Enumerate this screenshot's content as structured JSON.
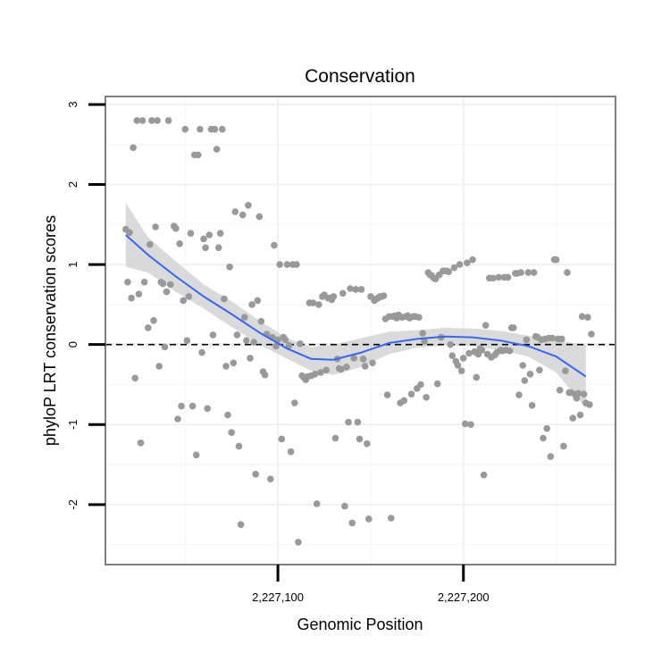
{
  "chart_data": {
    "type": "scatter",
    "title": "Conservation",
    "xlabel": "Genomic Position",
    "ylabel": "phyloP LRT conservation scores",
    "xlim": [
      2227007,
      2227282
    ],
    "ylim": [
      -2.75,
      3.1
    ],
    "x_major_ticks": [
      2227100,
      2227200
    ],
    "x_tick_labels": [
      "2,227,100",
      "2,227,200"
    ],
    "x_minor_gridlines": [
      2227050,
      2227150,
      2227250
    ],
    "y_major_ticks": [
      -2,
      -1,
      0,
      1,
      2,
      3
    ],
    "y_tick_labels": [
      "-2",
      "-1",
      "0",
      "1",
      "2",
      "3"
    ],
    "y_minor_gridlines": [
      -2.5,
      -1.5,
      -0.5,
      0.5,
      1.5,
      2.5
    ],
    "reference_line": {
      "y": 0,
      "style": "dashed"
    },
    "smooth": {
      "method": "loess",
      "color": "#3366FF",
      "band_color": "#d3d3d3",
      "x": [
        2227018,
        2227030,
        2227045,
        2227060,
        2227075,
        2227090,
        2227105,
        2227118,
        2227130,
        2227145,
        2227160,
        2227175,
        2227190,
        2227205,
        2227220,
        2227235,
        2227250,
        2227266
      ],
      "y": [
        1.37,
        1.12,
        0.85,
        0.6,
        0.38,
        0.15,
        -0.05,
        -0.18,
        -0.19,
        -0.1,
        0.02,
        0.07,
        0.1,
        0.09,
        0.05,
        -0.02,
        -0.15,
        -0.4
      ],
      "lower": [
        0.97,
        0.9,
        0.66,
        0.45,
        0.22,
        0.0,
        -0.18,
        -0.33,
        -0.38,
        -0.28,
        -0.12,
        -0.04,
        -0.01,
        -0.02,
        -0.07,
        -0.15,
        -0.35,
        -0.8
      ],
      "upper": [
        1.77,
        1.34,
        1.04,
        0.75,
        0.54,
        0.3,
        0.08,
        -0.03,
        0.0,
        0.08,
        0.16,
        0.18,
        0.21,
        0.2,
        0.17,
        0.11,
        0.05,
        0.0
      ]
    },
    "point_color": "#999999",
    "points": [
      [
        2227018,
        1.44
      ],
      [
        2227019,
        0.78
      ],
      [
        2227020,
        1.4
      ],
      [
        2227021,
        0.58
      ],
      [
        2227022,
        2.46
      ],
      [
        2227023,
        -0.42
      ],
      [
        2227024,
        2.8
      ],
      [
        2227025,
        0.63
      ],
      [
        2227026,
        -1.23
      ],
      [
        2227027,
        2.8
      ],
      [
        2227028,
        0.78
      ],
      [
        2227030,
        0.21
      ],
      [
        2227031,
        1.25
      ],
      [
        2227032,
        2.8
      ],
      [
        2227033,
        0.3
      ],
      [
        2227034,
        1.47
      ],
      [
        2227035,
        2.8
      ],
      [
        2227036,
        -0.27
      ],
      [
        2227037,
        0.78
      ],
      [
        2227038,
        0.76
      ],
      [
        2227039,
        -0.03
      ],
      [
        2227040,
        0.66
      ],
      [
        2227041,
        2.8
      ],
      [
        2227042,
        0.75
      ],
      [
        2227044,
        1.48
      ],
      [
        2227045,
        1.45
      ],
      [
        2227046,
        -0.93
      ],
      [
        2227047,
        1.26
      ],
      [
        2227048,
        -0.77
      ],
      [
        2227049,
        0.55
      ],
      [
        2227050,
        2.69
      ],
      [
        2227051,
        0.05
      ],
      [
        2227052,
        0.6
      ],
      [
        2227053,
        1.39
      ],
      [
        2227054,
        -0.77
      ],
      [
        2227055,
        2.37
      ],
      [
        2227056,
        -1.38
      ],
      [
        2227057,
        2.37
      ],
      [
        2227058,
        2.69
      ],
      [
        2227059,
        -0.1
      ],
      [
        2227060,
        1.32
      ],
      [
        2227061,
        1.21
      ],
      [
        2227062,
        -0.8
      ],
      [
        2227063,
        1.37
      ],
      [
        2227064,
        2.69
      ],
      [
        2227065,
        0.12
      ],
      [
        2227066,
        2.69
      ],
      [
        2227067,
        2.44
      ],
      [
        2227068,
        1.21
      ],
      [
        2227069,
        1.39
      ],
      [
        2227070,
        2.69
      ],
      [
        2227071,
        0.57
      ],
      [
        2227072,
        -0.27
      ],
      [
        2227073,
        -0.88
      ],
      [
        2227074,
        0.97
      ],
      [
        2227075,
        -1.1
      ],
      [
        2227076,
        -0.23
      ],
      [
        2227077,
        1.66
      ],
      [
        2227078,
        0.12
      ],
      [
        2227079,
        -1.27
      ],
      [
        2227080,
        -2.25
      ],
      [
        2227081,
        1.62
      ],
      [
        2227082,
        0.34
      ],
      [
        2227083,
        0.05
      ],
      [
        2227084,
        1.74
      ],
      [
        2227085,
        -0.17
      ],
      [
        2227086,
        0.5
      ],
      [
        2227087,
        0.03
      ],
      [
        2227088,
        -1.62
      ],
      [
        2227089,
        0.55
      ],
      [
        2227090,
        1.6
      ],
      [
        2227091,
        0.29
      ],
      [
        2227092,
        -0.34
      ],
      [
        2227093,
        -0.38
      ],
      [
        2227094,
        0.13
      ],
      [
        2227096,
        -1.68
      ],
      [
        2227097,
        0.09
      ],
      [
        2227098,
        1.24
      ],
      [
        2227099,
        -0.02
      ],
      [
        2227100,
        0.06
      ],
      [
        2227101,
        1.0
      ],
      [
        2227102,
        -1.18
      ],
      [
        2227103,
        0.09
      ],
      [
        2227104,
        0.06
      ],
      [
        2227105,
        1.0
      ],
      [
        2227106,
        -0.01
      ],
      [
        2227107,
        -1.34
      ],
      [
        2227108,
        1.0
      ],
      [
        2227109,
        -0.73
      ],
      [
        2227110,
        1.0
      ],
      [
        2227111,
        -2.47
      ],
      [
        2227112,
        0.01
      ],
      [
        2227113,
        -0.39
      ],
      [
        2227114,
        -0.41
      ],
      [
        2227115,
        -0.44
      ],
      [
        2227116,
        -0.4
      ],
      [
        2227117,
        0.52
      ],
      [
        2227118,
        -0.39
      ],
      [
        2227119,
        0.52
      ],
      [
        2227120,
        -0.37
      ],
      [
        2227121,
        -1.99
      ],
      [
        2227122,
        0.5
      ],
      [
        2227123,
        -0.35
      ],
      [
        2227124,
        0.6
      ],
      [
        2227125,
        0.62
      ],
      [
        2227126,
        -0.32
      ],
      [
        2227127,
        0.58
      ],
      [
        2227128,
        0.58
      ],
      [
        2227129,
        0.56
      ],
      [
        2227130,
        0.6
      ],
      [
        2227131,
        -1.17
      ],
      [
        2227132,
        -0.18
      ],
      [
        2227133,
        -0.3
      ],
      [
        2227134,
        -0.31
      ],
      [
        2227135,
        0.64
      ],
      [
        2227136,
        -2.02
      ],
      [
        2227137,
        -0.28
      ],
      [
        2227138,
        -0.97
      ],
      [
        2227139,
        0.7
      ],
      [
        2227140,
        -2.23
      ],
      [
        2227141,
        -0.17
      ],
      [
        2227142,
        0.69
      ],
      [
        2227143,
        -0.97
      ],
      [
        2227144,
        -1.18
      ],
      [
        2227145,
        0.69
      ],
      [
        2227146,
        -0.18
      ],
      [
        2227147,
        -0.27
      ],
      [
        2227148,
        -1.24
      ],
      [
        2227149,
        -2.18
      ],
      [
        2227150,
        0.6
      ],
      [
        2227151,
        -0.23
      ],
      [
        2227152,
        0.55
      ],
      [
        2227153,
        0.57
      ],
      [
        2227154,
        0.58
      ],
      [
        2227155,
        0.6
      ],
      [
        2227156,
        0.6
      ],
      [
        2227157,
        0.61
      ],
      [
        2227158,
        0.32
      ],
      [
        2227159,
        -0.63
      ],
      [
        2227160,
        0.35
      ],
      [
        2227161,
        -2.17
      ],
      [
        2227162,
        0.35
      ],
      [
        2227163,
        0.36
      ],
      [
        2227164,
        0.33
      ],
      [
        2227165,
        0.37
      ],
      [
        2227166,
        -0.73
      ],
      [
        2227167,
        0.34
      ],
      [
        2227168,
        -0.7
      ],
      [
        2227169,
        0.35
      ],
      [
        2227170,
        0.36
      ],
      [
        2227171,
        0.33
      ],
      [
        2227172,
        -0.62
      ],
      [
        2227173,
        0.35
      ],
      [
        2227174,
        0.35
      ],
      [
        2227175,
        -0.55
      ],
      [
        2227176,
        0.34
      ],
      [
        2227177,
        -0.5
      ],
      [
        2227178,
        0.14
      ],
      [
        2227179,
        0.04
      ],
      [
        2227180,
        -0.66
      ],
      [
        2227181,
        0.9
      ],
      [
        2227182,
        0.87
      ],
      [
        2227183,
        0.86
      ],
      [
        2227184,
        0.83
      ],
      [
        2227185,
        0.82
      ],
      [
        2227186,
        -0.49
      ],
      [
        2227187,
        0.87
      ],
      [
        2227188,
        0.09
      ],
      [
        2227189,
        0.92
      ],
      [
        2227190,
        0.92
      ],
      [
        2227191,
        0.92
      ],
      [
        2227192,
        0.91
      ],
      [
        2227193,
        0.0
      ],
      [
        2227194,
        -0.14
      ],
      [
        2227195,
        0.96
      ],
      [
        2227196,
        -0.21
      ],
      [
        2227197,
        -0.26
      ],
      [
        2227198,
        1.0
      ],
      [
        2227199,
        -0.33
      ],
      [
        2227200,
        -0.17
      ],
      [
        2227201,
        -0.99
      ],
      [
        2227202,
        1.02
      ],
      [
        2227203,
        -0.11
      ],
      [
        2227204,
        -1.0
      ],
      [
        2227205,
        1.06
      ],
      [
        2227206,
        -0.09
      ],
      [
        2227207,
        -0.41
      ],
      [
        2227208,
        -0.12
      ],
      [
        2227209,
        -0.05
      ],
      [
        2227210,
        -0.07
      ],
      [
        2227211,
        -1.63
      ],
      [
        2227212,
        0.24
      ],
      [
        2227213,
        -0.12
      ],
      [
        2227214,
        0.83
      ],
      [
        2227215,
        -0.16
      ],
      [
        2227216,
        0.83
      ],
      [
        2227217,
        -0.13
      ],
      [
        2227218,
        -0.1
      ],
      [
        2227219,
        0.84
      ],
      [
        2227220,
        -0.07
      ],
      [
        2227221,
        -0.08
      ],
      [
        2227222,
        0.84
      ],
      [
        2227223,
        -0.07
      ],
      [
        2227224,
        0.84
      ],
      [
        2227225,
        -0.08
      ],
      [
        2227226,
        0.21
      ],
      [
        2227227,
        0.21
      ],
      [
        2227228,
        0.89
      ],
      [
        2227229,
        0.89
      ],
      [
        2227230,
        -0.63
      ],
      [
        2227231,
        0.9
      ],
      [
        2227232,
        -0.26
      ],
      [
        2227233,
        -0.45
      ],
      [
        2227234,
        0.06
      ],
      [
        2227235,
        0.9
      ],
      [
        2227236,
        -0.37
      ],
      [
        2227237,
        -0.76
      ],
      [
        2227238,
        0.9
      ],
      [
        2227239,
        0.1
      ],
      [
        2227240,
        0.09
      ],
      [
        2227241,
        -0.32
      ],
      [
        2227242,
        0.06
      ],
      [
        2227243,
        -1.17
      ],
      [
        2227244,
        0.07
      ],
      [
        2227245,
        -1.05
      ],
      [
        2227246,
        0.08
      ],
      [
        2227247,
        -1.4
      ],
      [
        2227248,
        0.08
      ],
      [
        2227249,
        1.06
      ],
      [
        2227250,
        1.06
      ],
      [
        2227251,
        0.07
      ],
      [
        2227252,
        -0.57
      ],
      [
        2227253,
        0.07
      ],
      [
        2227254,
        -1.27
      ],
      [
        2227255,
        -0.33
      ],
      [
        2227256,
        0.9
      ],
      [
        2227257,
        -0.6
      ],
      [
        2227258,
        -0.6
      ],
      [
        2227259,
        -0.92
      ],
      [
        2227260,
        -0.62
      ],
      [
        2227261,
        -0.67
      ],
      [
        2227262,
        -0.61
      ],
      [
        2227263,
        -0.88
      ],
      [
        2227264,
        0.35
      ],
      [
        2227265,
        -0.62
      ],
      [
        2227266,
        -0.73
      ],
      [
        2227267,
        0.34
      ],
      [
        2227268,
        -0.75
      ],
      [
        2227269,
        0.13
      ]
    ]
  }
}
